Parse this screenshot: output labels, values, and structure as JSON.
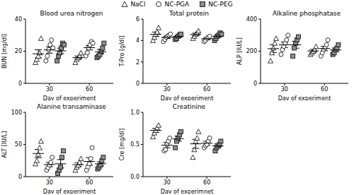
{
  "chart_data": [
    {
      "type": "scatter",
      "title": "Blood urea nitrogen",
      "x_label": "Day of experiment",
      "y_label": "BUN [mg/dl]",
      "categories": [
        "30",
        "60"
      ],
      "ylim": [
        0,
        40
      ],
      "yticks": [
        0,
        20,
        40
      ],
      "grid": false,
      "legend": "top",
      "series": [
        {
          "name": "NaCl",
          "color": "#ffffff",
          "marker": "triangle",
          "values": [
            [
              13,
              15,
              17,
              19,
              28
            ],
            [
              13,
              15,
              16,
              17,
              19
            ]
          ],
          "mean": [
            18.4,
            16.0
          ],
          "error": [
            2.6,
            1.0
          ]
        },
        {
          "name": "NC-PGA",
          "color": "#ffffff",
          "marker": "circle",
          "values": [
            [
              14,
              17,
              21,
              24,
              27,
              22
            ],
            [
              17,
              19,
              22,
              24,
              26,
              25
            ]
          ],
          "mean": [
            20.8,
            22.2
          ],
          "error": [
            2.0,
            1.4
          ]
        },
        {
          "name": "NC-PEG",
          "color": "#8c8c8c",
          "marker": "square",
          "values": [
            [
              14,
              17,
              19,
              22,
              25,
              24
            ],
            [
              16,
              17,
              18,
              20,
              22,
              25
            ]
          ],
          "mean": [
            20.2,
            19.7
          ],
          "error": [
            1.7,
            1.4
          ]
        }
      ]
    },
    {
      "type": "scatter",
      "title": "Total protein",
      "x_label": "Day of experiment",
      "y_label": "T-Pro [g/dl]",
      "categories": [
        "30",
        "60"
      ],
      "ylim": [
        0,
        6
      ],
      "yticks": [
        0,
        2,
        4,
        6
      ],
      "grid": false,
      "series": [
        {
          "name": "NaCl",
          "color": "#ffffff",
          "marker": "triangle",
          "values": [
            [
              4.0,
              4.3,
              4.6,
              4.8,
              5.2
            ],
            [
              4.2,
              4.4,
              4.6,
              4.7,
              4.9
            ]
          ],
          "mean": [
            4.58,
            4.56
          ],
          "error": [
            0.21,
            0.12
          ]
        },
        {
          "name": "NC-PGA",
          "color": "#ffffff",
          "marker": "circle",
          "values": [
            [
              3.9,
              4.1,
              4.3,
              4.4,
              4.5,
              4.6
            ],
            [
              3.9,
              4.0,
              4.2,
              4.3,
              4.4
            ]
          ],
          "mean": [
            4.3,
            4.16
          ],
          "error": [
            0.11,
            0.09
          ]
        },
        {
          "name": "NC-PEG",
          "color": "#8c8c8c",
          "marker": "square",
          "values": [
            [
              4.1,
              4.2,
              4.4,
              4.5,
              4.6
            ],
            [
              4.0,
              4.2,
              4.4,
              4.5,
              4.7,
              4.6
            ]
          ],
          "mean": [
            4.36,
            4.4
          ],
          "error": [
            0.09,
            0.1
          ]
        }
      ]
    },
    {
      "type": "scatter",
      "title": "Alkaline phosphatase",
      "x_label": "Day of experiment",
      "y_label": "ALP [IU/L]",
      "categories": [
        "30",
        "60"
      ],
      "ylim": [
        0,
        400
      ],
      "yticks": [
        0,
        200,
        400
      ],
      "grid": false,
      "series": [
        {
          "name": "NaCl",
          "color": "#ffffff",
          "marker": "triangle",
          "values": [
            [
              140,
              190,
              220,
              250,
              280
            ],
            [
              180,
              190,
              200,
              210,
              230
            ]
          ],
          "mean": [
            216,
            202
          ],
          "error": [
            24,
            9
          ]
        },
        {
          "name": "NC-PGA",
          "color": "#ffffff",
          "marker": "circle",
          "values": [
            [
              180,
              210,
              230,
              250,
              270,
              300
            ],
            [
              170,
              190,
              210,
              220,
              240,
              270
            ]
          ],
          "mean": [
            240,
            216.7
          ],
          "error": [
            17,
            14
          ]
        },
        {
          "name": "NC-PEG",
          "color": "#8c8c8c",
          "marker": "square",
          "values": [
            [
              170,
              220,
              250,
              270,
              290
            ],
            [
              180,
              190,
              210,
              220,
              240
            ]
          ],
          "mean": [
            240,
            208
          ],
          "error": [
            21,
            11
          ]
        }
      ]
    },
    {
      "type": "scatter",
      "title": "Alanine transaminase",
      "x_label": "Day of experiment",
      "y_label": "ALT [IU/L]",
      "categories": [
        "30",
        "60"
      ],
      "ylim": [
        0,
        100
      ],
      "yticks": [
        0,
        50,
        100
      ],
      "grid": false,
      "series": [
        {
          "name": "NaCl",
          "color": "#ffffff",
          "marker": "triangle",
          "values": [
            [
              20,
              25,
              35,
              45,
              55
            ],
            [
              10,
              15,
              18,
              22,
              28
            ]
          ],
          "mean": [
            36,
            18.6
          ],
          "error": [
            6.4,
            3.0
          ]
        },
        {
          "name": "NC-PGA",
          "color": "#ffffff",
          "marker": "circle",
          "values": [
            [
              10,
              14,
              18,
              22,
              30
            ],
            [
              10,
              15,
              20,
              28,
              45
            ]
          ],
          "mean": [
            18.8,
            23.6
          ],
          "error": [
            3.4,
            6.0
          ]
        },
        {
          "name": "NC-PEG",
          "color": "#8c8c8c",
          "marker": "square",
          "values": [
            [
              5,
              10,
              15,
              30,
              40
            ],
            [
              12,
              15,
              18,
              25,
              30
            ]
          ],
          "mean": [
            20,
            20
          ],
          "error": [
            6.5,
            3.3
          ]
        }
      ]
    },
    {
      "type": "scatter",
      "title": "Creatinine",
      "x_label": "Day of experimnet",
      "y_label": "Cre [mg/dl]",
      "categories": [
        "30",
        "60"
      ],
      "ylim": [
        0,
        1.0
      ],
      "yticks": [
        {
          "value": 0,
          "label": "0.0"
        },
        {
          "value": 0.5,
          "label": "0.5"
        },
        {
          "value": 1,
          "label": "1.0"
        }
      ],
      "grid": false,
      "series": [
        {
          "name": "NaCl",
          "color": "#ffffff",
          "marker": "triangle",
          "values": [
            [
              0.62,
              0.68,
              0.72,
              0.76,
              0.8
            ],
            [
              0.3,
              0.42,
              0.55,
              0.6,
              0.7
            ]
          ],
          "mean": [
            0.72,
            0.51
          ],
          "error": [
            0.03,
            0.07
          ]
        },
        {
          "name": "NC-PGA",
          "color": "#ffffff",
          "marker": "circle",
          "values": [
            [
              0.4,
              0.42,
              0.5,
              0.55,
              0.6
            ],
            [
              0.45,
              0.48,
              0.5,
              0.55,
              0.6
            ]
          ],
          "mean": [
            0.49,
            0.52
          ],
          "error": [
            0.04,
            0.03
          ]
        },
        {
          "name": "NC-PEG",
          "color": "#8c8c8c",
          "marker": "square",
          "values": [
            [
              0.45,
              0.55,
              0.6,
              0.65,
              0.7
            ],
            [
              0.4,
              0.45,
              0.48,
              0.5,
              0.55
            ]
          ],
          "mean": [
            0.59,
            0.48
          ],
          "error": [
            0.04,
            0.03
          ]
        }
      ]
    }
  ]
}
